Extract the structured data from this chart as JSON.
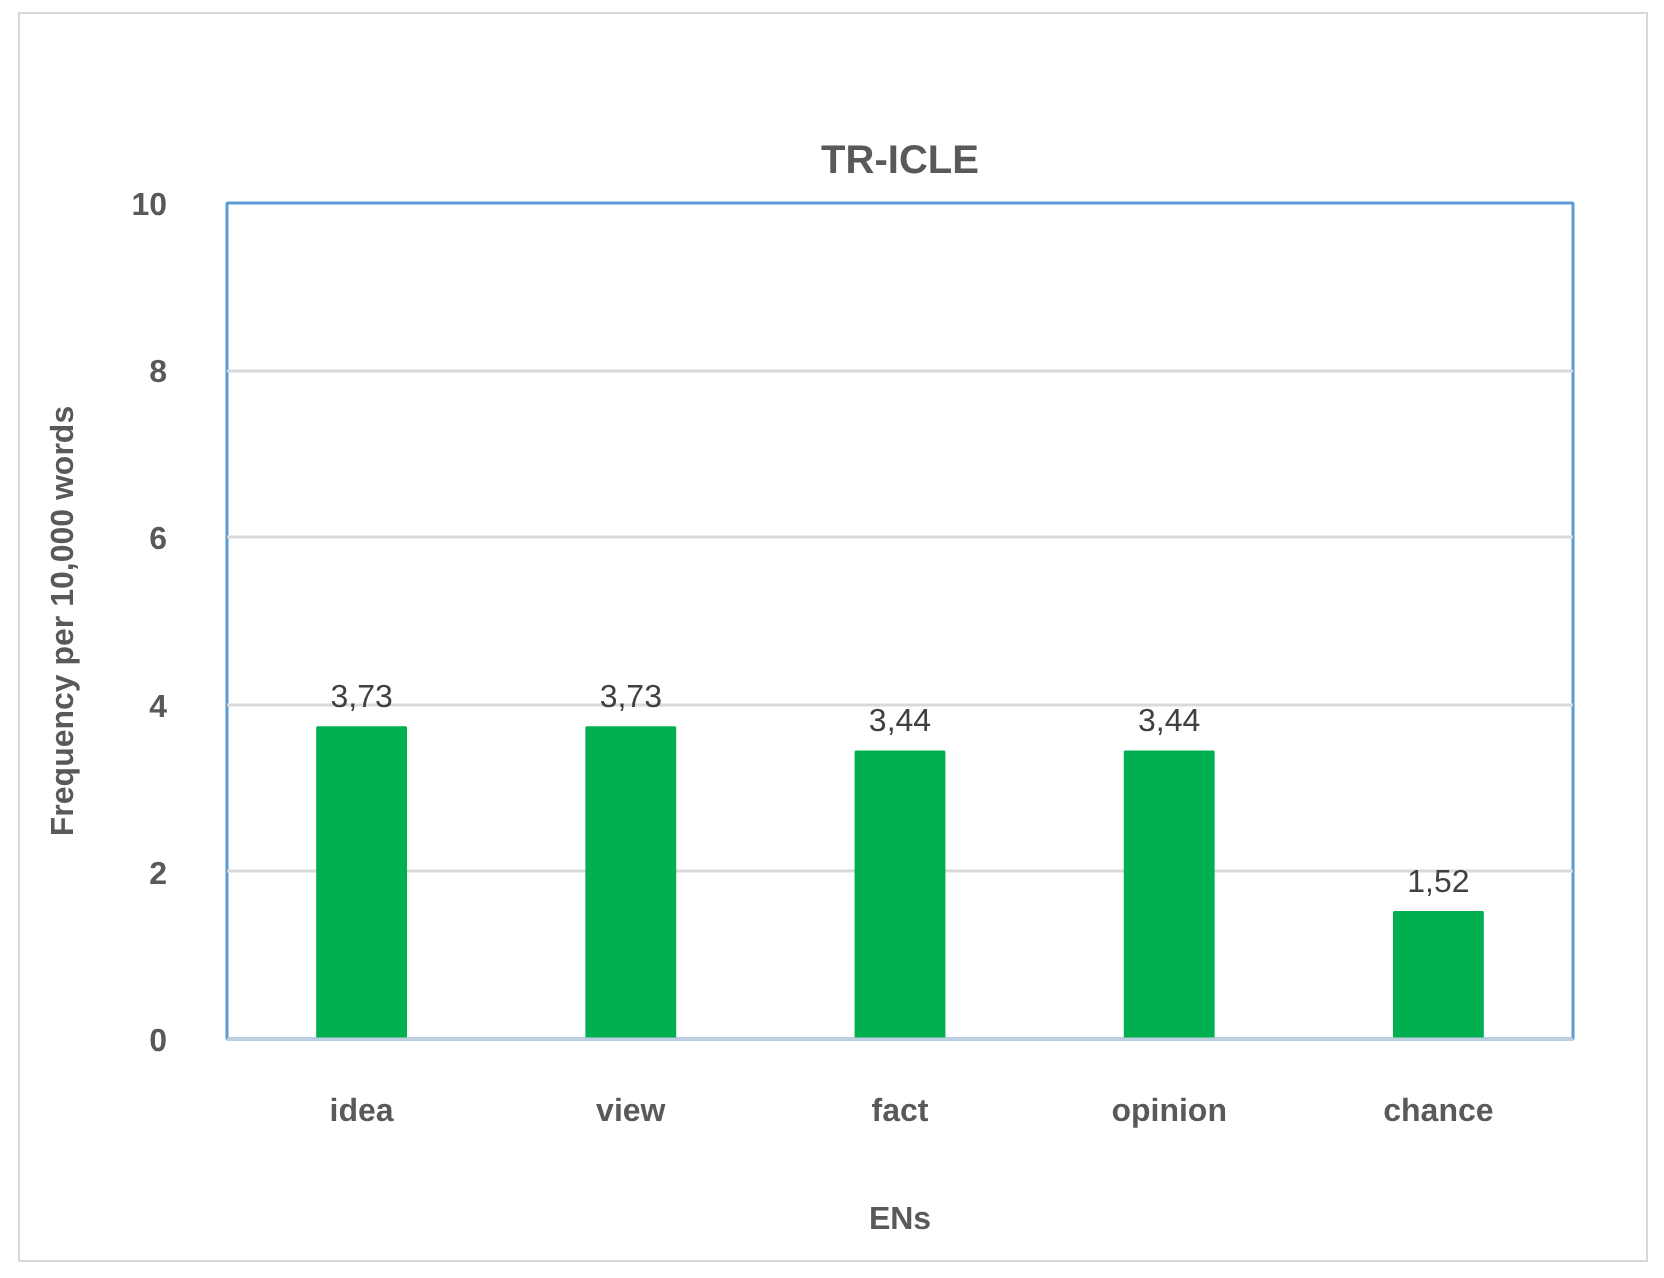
{
  "chart_data": {
    "type": "bar",
    "title": "TR-ICLE",
    "xlabel": "ENs",
    "ylabel": "Frequency per 10,000 words",
    "categories": [
      "idea",
      "view",
      "fact",
      "opinion",
      "chance"
    ],
    "values": [
      3.73,
      3.73,
      3.44,
      3.44,
      1.52
    ],
    "value_labels": [
      "3,73",
      "3,73",
      "3,44",
      "3,44",
      "1,52"
    ],
    "color": "#00b050",
    "ylim": [
      0,
      10
    ],
    "yticks": [
      0,
      2,
      4,
      6,
      8,
      10
    ],
    "grid": "y"
  }
}
